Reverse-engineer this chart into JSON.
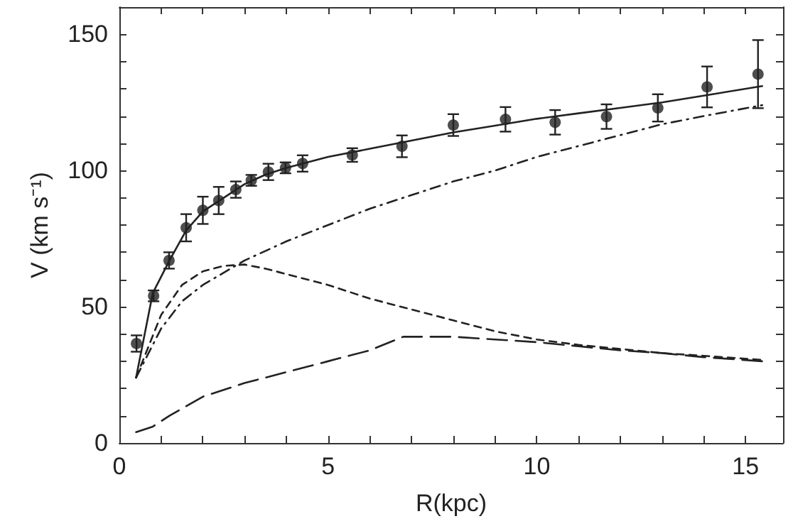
{
  "chart_data": {
    "type": "line",
    "xlabel": "R(kpc)",
    "ylabel": "V (km s⁻¹)",
    "xlim": [
      0,
      15.9
    ],
    "ylim": [
      0,
      160
    ],
    "xticks": [
      0,
      {
        "value": 1,
        "label": null
      },
      {
        "value": 2,
        "label": null
      },
      {
        "value": 3,
        "label": null
      },
      {
        "value": 4,
        "label": null
      },
      5,
      {
        "value": 6,
        "label": null
      },
      {
        "value": 7,
        "label": null
      },
      {
        "value": 8,
        "label": null
      },
      {
        "value": 9,
        "label": null
      },
      10,
      {
        "value": 11,
        "label": null
      },
      {
        "value": 12,
        "label": null
      },
      {
        "value": 13,
        "label": null
      },
      {
        "value": 14,
        "label": null
      },
      15
    ],
    "yticks": [
      0,
      {
        "value": 10,
        "label": null
      },
      {
        "value": 20,
        "label": null
      },
      {
        "value": 30,
        "label": null
      },
      {
        "value": 40,
        "label": null
      },
      50,
      {
        "value": 60,
        "label": null
      },
      {
        "value": 70,
        "label": null
      },
      {
        "value": 80,
        "label": null
      },
      {
        "value": 90,
        "label": null
      },
      100,
      {
        "value": 110,
        "label": null
      },
      {
        "value": 120,
        "label": null
      },
      {
        "value": 130,
        "label": null
      },
      {
        "value": 140,
        "label": null
      },
      150
    ],
    "grid": false,
    "marker": "none",
    "series": [
      {
        "type": "scatter",
        "marker": "circle",
        "color": "#222222",
        "x": [
          0.41,
          0.82,
          1.19,
          1.6,
          2.0,
          2.38,
          2.79,
          3.16,
          3.57,
          3.98,
          4.39,
          5.58,
          6.77,
          8.0,
          9.25,
          10.44,
          11.67,
          12.9,
          14.08,
          15.3
        ],
        "values": [
          36.5,
          54,
          67,
          79,
          85.4,
          89,
          93,
          96.4,
          99.5,
          101,
          102.6,
          105.7,
          108.9,
          116.7,
          118.8,
          117.7,
          119.8,
          123,
          130.7,
          135.4
        ],
        "errors": [
          3,
          2,
          3,
          5,
          5,
          5,
          3,
          2,
          3,
          2,
          3,
          2.5,
          4,
          4,
          4.5,
          4.5,
          4.5,
          5,
          7.5,
          12.5
        ]
      },
      {
        "line_style": "solid",
        "color": "#222222",
        "x": [
          0.4,
          0.8,
          1.2,
          1.6,
          2,
          2.5,
          3,
          3.5,
          4,
          5,
          6,
          7,
          8,
          9,
          10,
          11,
          12,
          13,
          14,
          15.4
        ],
        "values": [
          24,
          55,
          67,
          78,
          85,
          90,
          95,
          98.5,
          101,
          105,
          108,
          111,
          114,
          116.5,
          119,
          121,
          123,
          125,
          127.5,
          131
        ]
      },
      {
        "type": "line",
        "line_style": "dashed",
        "color": "#222222",
        "x": [
          0.4,
          1,
          1.5,
          2,
          3,
          4,
          5,
          6,
          7,
          8,
          9,
          10,
          11,
          12,
          13,
          14,
          15.4
        ],
        "values": [
          24,
          42,
          52,
          58,
          67,
          74,
          80,
          86,
          91,
          96,
          100,
          105,
          109,
          113,
          117,
          120,
          124
        ]
      },
      {
        "type": "line",
        "line_style": "dashed",
        "color": "#222222",
        "x": [
          0.4,
          1,
          1.5,
          2,
          2.5,
          3,
          3.5,
          4,
          5,
          6,
          7,
          8,
          9,
          10,
          11,
          12,
          13,
          14,
          15.4
        ],
        "values": [
          24,
          47,
          58,
          63,
          65,
          65.5,
          64,
          62,
          58,
          53,
          49,
          45,
          41,
          38,
          36,
          34.5,
          33,
          32,
          30.5
        ]
      },
      {
        "type": "line",
        "line_style": "dashed",
        "color": "#222222",
        "x": [
          0.4,
          0.8,
          1.2,
          2,
          3,
          4,
          5,
          6,
          6.8,
          8,
          9,
          10,
          11,
          12,
          13,
          14,
          15.4
        ],
        "values": [
          4,
          6,
          10,
          17,
          22,
          26,
          30,
          34,
          39,
          39,
          38,
          37,
          35.5,
          34,
          33,
          31.5,
          30
        ]
      }
    ]
  }
}
